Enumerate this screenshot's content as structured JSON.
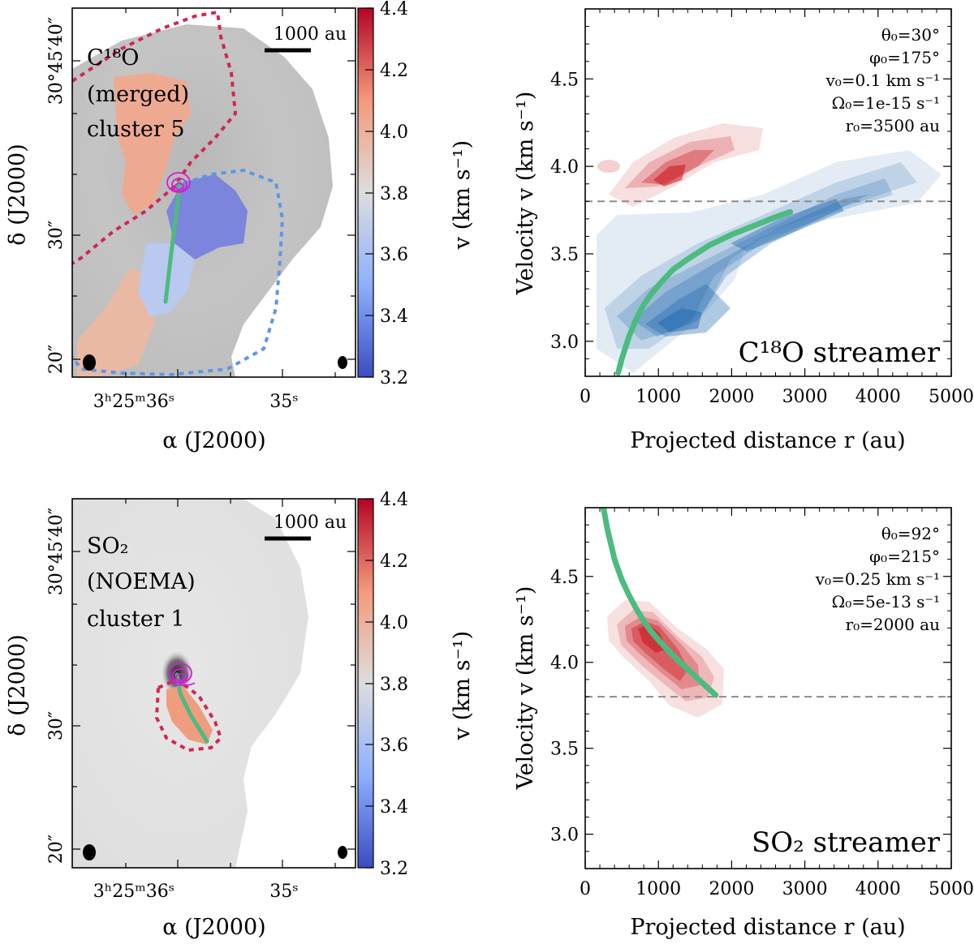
{
  "colors": {
    "red_dotted": "#d1274f",
    "blue_dotted": "#5e96e6",
    "stream_green": "#4cbb7f",
    "magenta": "#d21fd2",
    "cbar_low": "#3a4cc0",
    "cbar_mid": "#dddddd",
    "cbar_high": "#b40426",
    "kde_blue": "#1a64ad",
    "kde_red": "#c8131a",
    "dash_gray": "#8c8c8c"
  },
  "chart_data": [
    {
      "id": "map_c18o",
      "type": "heatmap",
      "annotation_lines": [
        "C¹⁸O",
        "(merged)",
        "cluster 5"
      ],
      "scalebar_label": "1000 au",
      "xlabel": "α (J2000)",
      "ylabel": "δ (J2000)",
      "x_ticklabels": [
        "3ʰ25ᵐ36ˢ",
        "35ˢ"
      ],
      "y_ticklabels": [
        "30°45′40″",
        "30″",
        "20″"
      ],
      "colorbar": {
        "label": "v (km s⁻¹)",
        "range": [
          3.2,
          4.4
        ],
        "ticks": [
          3.2,
          3.4,
          3.6,
          3.8,
          4.0,
          4.2,
          4.4
        ],
        "ticklabels": [
          "3.2",
          "3.4",
          "3.6",
          "3.8",
          "4.0",
          "4.2",
          "4.4"
        ]
      }
    },
    {
      "id": "pv_c18o",
      "type": "line",
      "title": "C¹⁸O streamer",
      "xlabel": "Projected distance r (au)",
      "ylabel": "Velocity v (km s⁻¹)",
      "xlim": [
        0,
        5000
      ],
      "ylim": [
        2.8,
        4.9
      ],
      "x_ticks": [
        0,
        1000,
        2000,
        3000,
        4000,
        5000
      ],
      "x_ticklabels": [
        "0",
        "1000",
        "2000",
        "3000",
        "4000",
        "5000"
      ],
      "y_ticks": [
        3.0,
        3.5,
        4.0,
        4.5
      ],
      "y_ticklabels": [
        "3.0",
        "3.5",
        "4.0",
        "4.5"
      ],
      "v_systemic": 3.8,
      "params": [
        "θ₀=30°",
        "φ₀=175°",
        "v₀=0.1 km s⁻¹",
        "Ω₀=1e-15 s⁻¹",
        "r₀=3500 au"
      ],
      "model_curve": {
        "name": "streamline model",
        "x": [
          450,
          500,
          600,
          700,
          800,
          900,
          1000,
          1200,
          1400,
          1700,
          2000,
          2300,
          2600,
          2800
        ],
        "y": [
          2.82,
          2.9,
          3.03,
          3.13,
          3.21,
          3.27,
          3.32,
          3.41,
          3.47,
          3.55,
          3.61,
          3.66,
          3.71,
          3.74
        ]
      }
    },
    {
      "id": "map_so2",
      "type": "heatmap",
      "annotation_lines": [
        "SO₂",
        "(NOEMA)",
        "cluster 1"
      ],
      "scalebar_label": "1000 au",
      "xlabel": "α (J2000)",
      "ylabel": "δ (J2000)",
      "x_ticklabels": [
        "3ʰ25ᵐ36ˢ",
        "35ˢ"
      ],
      "y_ticklabels": [
        "30°45′40″",
        "30″",
        "20″"
      ],
      "colorbar": {
        "label": "v (km s⁻¹)",
        "range": [
          3.2,
          4.4
        ],
        "ticks": [
          3.2,
          3.4,
          3.6,
          3.8,
          4.0,
          4.2,
          4.4
        ],
        "ticklabels": [
          "3.2",
          "3.4",
          "3.6",
          "3.8",
          "4.0",
          "4.2",
          "4.4"
        ]
      }
    },
    {
      "id": "pv_so2",
      "type": "line",
      "title": "SO₂ streamer",
      "xlabel": "Projected distance r (au)",
      "ylabel": "Velocity v (km s⁻¹)",
      "xlim": [
        0,
        5000
      ],
      "ylim": [
        2.8,
        4.9
      ],
      "x_ticks": [
        0,
        1000,
        2000,
        3000,
        4000,
        5000
      ],
      "x_ticklabels": [
        "0",
        "1000",
        "2000",
        "3000",
        "4000",
        "5000"
      ],
      "y_ticks": [
        3.0,
        3.5,
        4.0,
        4.5
      ],
      "y_ticklabels": [
        "3.0",
        "3.5",
        "4.0",
        "4.5"
      ],
      "v_systemic": 3.8,
      "params": [
        "θ₀=92°",
        "φ₀=215°",
        "v₀=0.25 km s⁻¹",
        "Ω₀=5e-13 s⁻¹",
        "r₀=2000 au"
      ],
      "model_curve": {
        "name": "streamline model",
        "x": [
          250,
          300,
          400,
          500,
          600,
          700,
          800,
          900,
          1000,
          1200,
          1400,
          1600,
          1780
        ],
        "y": [
          4.9,
          4.78,
          4.6,
          4.48,
          4.39,
          4.31,
          4.24,
          4.18,
          4.13,
          4.04,
          3.96,
          3.88,
          3.81
        ]
      }
    }
  ]
}
